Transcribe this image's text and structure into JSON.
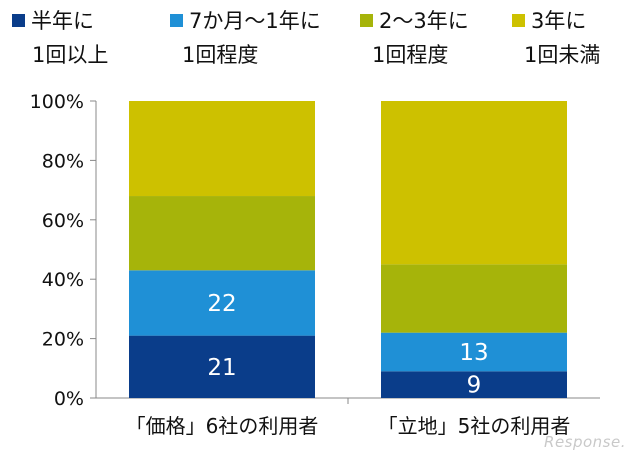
{
  "chart_data": {
    "type": "bar",
    "stacked": true,
    "categories": [
      "「価格」6社の利用者",
      "「立地」5社の利用者"
    ],
    "series": [
      {
        "name": "半年に1回以上",
        "name_line1": "半年に",
        "name_line2": "1回以上",
        "color": "#0a3d8a",
        "values": [
          21,
          9
        ],
        "labels": [
          "21",
          "9"
        ]
      },
      {
        "name": "7か月～1年に1回程度",
        "name_line1": "7か月～1年に",
        "name_line2": "1回程度",
        "color": "#1f90d6",
        "values": [
          22,
          13
        ],
        "labels": [
          "22",
          "13"
        ]
      },
      {
        "name": "2～3年に1回程度",
        "name_line1": "2～3年に",
        "name_line2": "1回程度",
        "color": "#a6b40a",
        "values": [
          25,
          23
        ],
        "labels": [
          "",
          ""
        ]
      },
      {
        "name": "3年に1回未満",
        "name_line1": "3年に",
        "name_line2": "1回未満",
        "color": "#cdc100",
        "values": [
          32,
          55
        ],
        "labels": [
          "",
          ""
        ]
      }
    ],
    "ylim": [
      0,
      100
    ],
    "yticks": [
      "0%",
      "20%",
      "40%",
      "60%",
      "80%",
      "100%"
    ],
    "legend_position": "top"
  },
  "watermark": "Response."
}
